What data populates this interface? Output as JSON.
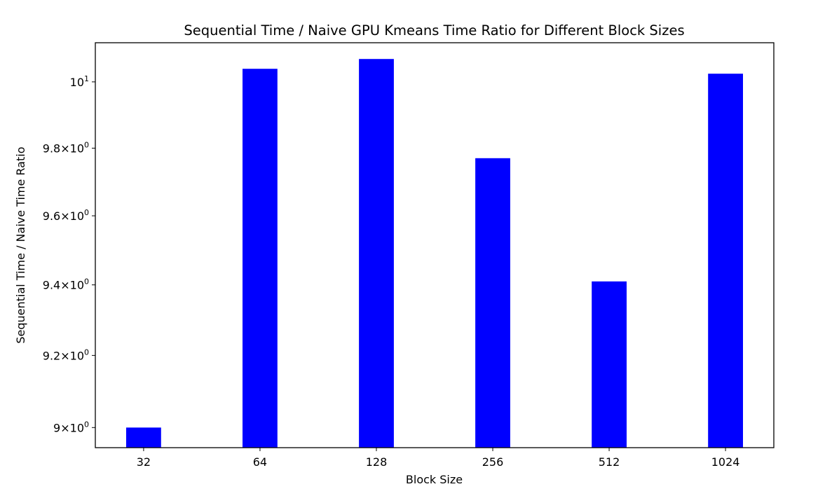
{
  "chart_data": {
    "type": "bar",
    "title": "Sequential Time / Naive GPU Kmeans Time Ratio for Different Block Sizes",
    "xlabel": "Block Size",
    "ylabel": "Sequential Time / Naive Time Ratio",
    "categories": [
      "32",
      "64",
      "128",
      "256",
      "512",
      "1024"
    ],
    "values": [
      9.0,
      10.04,
      10.07,
      9.77,
      9.41,
      10.025
    ],
    "yscale": "log",
    "ylim": [
      8.945,
      10.12
    ],
    "yticks": [
      {
        "value": 9.0,
        "mantissa": "9",
        "exponent": "0"
      },
      {
        "value": 9.2,
        "mantissa": "9.2",
        "exponent": "0"
      },
      {
        "value": 9.4,
        "mantissa": "9.4",
        "exponent": "0"
      },
      {
        "value": 9.6,
        "mantissa": "9.6",
        "exponent": "0"
      },
      {
        "value": 9.8,
        "mantissa": "9.8",
        "exponent": "0"
      },
      {
        "value": 10.0,
        "mantissa": "10",
        "exponent": "1"
      }
    ],
    "bar_color": "#0000ff",
    "grid": false,
    "legend": false
  }
}
